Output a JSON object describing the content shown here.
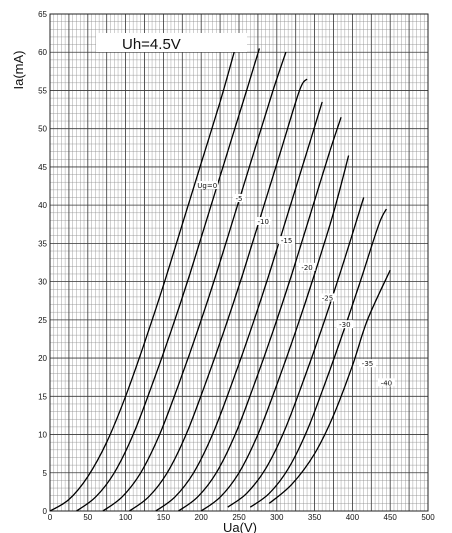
{
  "chart_data": {
    "type": "line",
    "title": "Uh=4.5V",
    "xlabel": "Ua(V)",
    "ylabel": "Ia(mA)",
    "xlim": [
      0,
      500
    ],
    "ylim": [
      0,
      65
    ],
    "x_ticks": [
      0,
      50,
      100,
      150,
      200,
      250,
      300,
      350,
      400,
      450,
      500
    ],
    "y_ticks": [
      0,
      5,
      10,
      15,
      20,
      25,
      30,
      35,
      40,
      45,
      50,
      55,
      60,
      65
    ],
    "grid": true,
    "series": [
      {
        "name": "Ug=0",
        "points": [
          [
            0,
            0
          ],
          [
            25,
            1.5
          ],
          [
            50,
            4.5
          ],
          [
            75,
            9
          ],
          [
            100,
            15
          ],
          [
            125,
            22
          ],
          [
            150,
            29.5
          ],
          [
            175,
            37.5
          ],
          [
            200,
            45.5
          ],
          [
            225,
            53.5
          ],
          [
            245,
            60.5
          ]
        ]
      },
      {
        "name": "-5",
        "points": [
          [
            35,
            0
          ],
          [
            60,
            1.8
          ],
          [
            85,
            5
          ],
          [
            110,
            10
          ],
          [
            135,
            16.5
          ],
          [
            160,
            23.5
          ],
          [
            185,
            31
          ],
          [
            210,
            39
          ],
          [
            235,
            47
          ],
          [
            260,
            55
          ],
          [
            277,
            60.5
          ]
        ]
      },
      {
        "name": "-10",
        "points": [
          [
            70,
            0
          ],
          [
            95,
            1.8
          ],
          [
            120,
            5
          ],
          [
            145,
            10
          ],
          [
            170,
            16.5
          ],
          [
            195,
            23.5
          ],
          [
            220,
            31
          ],
          [
            245,
            39
          ],
          [
            270,
            47
          ],
          [
            295,
            55
          ],
          [
            312,
            60
          ]
        ]
      },
      {
        "name": "-15",
        "points": [
          [
            105,
            0
          ],
          [
            130,
            1.8
          ],
          [
            155,
            5
          ],
          [
            180,
            10
          ],
          [
            205,
            16.5
          ],
          [
            230,
            23.5
          ],
          [
            255,
            31
          ],
          [
            280,
            39
          ],
          [
            305,
            47
          ],
          [
            330,
            55
          ],
          [
            340,
            56.5
          ]
        ]
      },
      {
        "name": "-20",
        "points": [
          [
            140,
            0
          ],
          [
            165,
            1.8
          ],
          [
            190,
            5
          ],
          [
            215,
            10
          ],
          [
            240,
            16.5
          ],
          [
            265,
            23.5
          ],
          [
            290,
            31
          ],
          [
            315,
            39
          ],
          [
            340,
            47
          ],
          [
            360,
            53.5
          ]
        ]
      },
      {
        "name": "-25",
        "points": [
          [
            170,
            0
          ],
          [
            195,
            1.8
          ],
          [
            220,
            5
          ],
          [
            245,
            10
          ],
          [
            270,
            16.5
          ],
          [
            295,
            23.5
          ],
          [
            320,
            31
          ],
          [
            345,
            39
          ],
          [
            370,
            47
          ],
          [
            385,
            51.5
          ]
        ]
      },
      {
        "name": "-30",
        "points": [
          [
            200,
            0
          ],
          [
            225,
            1.8
          ],
          [
            250,
            5
          ],
          [
            275,
            10
          ],
          [
            300,
            16.5
          ],
          [
            325,
            23.5
          ],
          [
            350,
            31
          ],
          [
            375,
            39
          ],
          [
            395,
            46.5
          ]
        ]
      },
      {
        "name": "-35",
        "points": [
          [
            235,
            0.5
          ],
          [
            260,
            2.3
          ],
          [
            285,
            5.5
          ],
          [
            310,
            10.5
          ],
          [
            335,
            17
          ],
          [
            360,
            24
          ],
          [
            385,
            31.5
          ],
          [
            415,
            41
          ]
        ]
      },
      {
        "name": "-40",
        "points": [
          [
            265,
            0.5
          ],
          [
            290,
            2.3
          ],
          [
            315,
            5.5
          ],
          [
            340,
            10.5
          ],
          [
            365,
            17
          ],
          [
            390,
            24
          ],
          [
            412,
            30.5
          ],
          [
            435,
            37.5
          ],
          [
            445,
            39.5
          ]
        ]
      },
      {
        "name": "",
        "points": [
          [
            290,
            1
          ],
          [
            320,
            3.5
          ],
          [
            350,
            7.5
          ],
          [
            375,
            12.5
          ],
          [
            400,
            19
          ],
          [
            420,
            25
          ],
          [
            450,
            31.5
          ]
        ]
      }
    ],
    "curve_labels": [
      {
        "text": "Ug=0",
        "at": [
          208,
          42.5
        ]
      },
      {
        "text": "-5",
        "at": [
          250,
          40.8
        ]
      },
      {
        "text": "-10",
        "at": [
          282,
          37.8
        ]
      },
      {
        "text": "-15",
        "at": [
          313,
          35.3
        ]
      },
      {
        "text": "-20",
        "at": [
          340,
          31.8
        ]
      },
      {
        "text": "-25",
        "at": [
          367,
          27.8
        ]
      },
      {
        "text": "-30",
        "at": [
          390,
          24.3
        ]
      },
      {
        "text": "-35",
        "at": [
          420,
          19.2
        ]
      },
      {
        "text": "-40",
        "at": [
          445,
          16.7
        ]
      }
    ]
  }
}
